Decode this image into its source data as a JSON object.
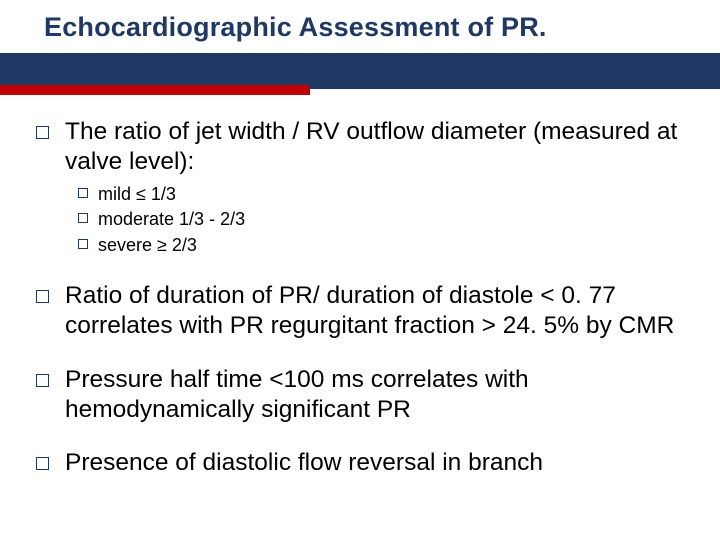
{
  "title": "Echocardiographic Assessment of PR.",
  "colors": {
    "title_color": "#203864",
    "band_dark": "#203864",
    "band_red": "#c00000",
    "bullet_border": "#203864",
    "text_color": "#000000",
    "background": "#ffffff"
  },
  "typography": {
    "title_fontsize": 27,
    "main_fontsize": 24.5,
    "sub_fontsize": 18,
    "font_family": "Arial"
  },
  "bullets": {
    "b1": "The ratio of jet width / RV outflow diameter (measured at valve level):",
    "b1_subs": {
      "s1": "mild ≤ 1/3",
      "s2": "moderate 1/3 - 2/3",
      "s3": "severe ≥ 2/3"
    },
    "b2": "Ratio of duration of PR/ duration of diastole < 0. 77 correlates with PR regurgitant fraction > 24. 5% by CMR",
    "b3": "Pressure half time <100 ms correlates with hemodynamically significant PR",
    "b4": "Presence of diastolic flow reversal in branch"
  }
}
